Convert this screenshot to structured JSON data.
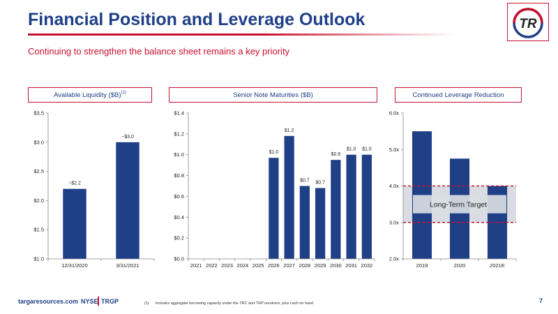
{
  "header": {
    "title": "Financial Position and Leverage Outlook",
    "subtitle": "Continuing to strengthen the balance sheet remains a key priority"
  },
  "logo": {
    "text": "TR",
    "icon": "targa-logo-icon"
  },
  "panels": {
    "liquidity": {
      "label": "Available Liquidity ($B)",
      "footnote_ref": "(1)"
    },
    "maturities": {
      "label": "Senior Note Maturities ($B)"
    },
    "leverage": {
      "label": "Continued Leverage Reduction"
    }
  },
  "chart_data": [
    {
      "id": "liquidity",
      "type": "bar",
      "categories": [
        "12/31/2020",
        "3/31/2021"
      ],
      "values": [
        2.2,
        3.0
      ],
      "data_labels": [
        "~$2.2",
        "~$3.0"
      ],
      "ylim": [
        1.0,
        3.5
      ],
      "yticks": [
        1.0,
        1.5,
        2.0,
        2.5,
        3.0,
        3.5
      ],
      "ytick_labels": [
        "$1.0",
        "$1.5",
        "$2.0",
        "$2.5",
        "$3.0",
        "$3.5"
      ],
      "grid": false,
      "color": "#1f3f86"
    },
    {
      "id": "maturities",
      "type": "bar",
      "categories": [
        "2021",
        "2022",
        "2023",
        "2024",
        "2025",
        "2026",
        "2027",
        "2028",
        "2029",
        "2030",
        "2031",
        "2032"
      ],
      "values": [
        0,
        0,
        0,
        0,
        0,
        0.97,
        1.18,
        0.7,
        0.68,
        0.95,
        1.0,
        1.0
      ],
      "data_labels": [
        "",
        "",
        "",
        "",
        "",
        "$1.0",
        "$1.2",
        "$0.7",
        "$0.7",
        "$0.9",
        "$1.0",
        "$1.0"
      ],
      "ylim": [
        0,
        1.4
      ],
      "yticks": [
        0,
        0.2,
        0.4,
        0.6,
        0.8,
        1.0,
        1.2,
        1.4
      ],
      "ytick_labels": [
        "$0.0",
        "$0.2",
        "$0.4",
        "$0.6",
        "$0.8",
        "$1.0",
        "$1.2",
        "$1.4"
      ],
      "grid": false,
      "color": "#1f3f86"
    },
    {
      "id": "leverage",
      "type": "bar",
      "categories": [
        "2019",
        "2020",
        "2021E"
      ],
      "values": [
        5.5,
        4.75,
        4.0
      ],
      "data_labels": [
        "",
        "",
        ""
      ],
      "ylim": [
        2.0,
        6.0
      ],
      "yticks": [
        2.0,
        3.0,
        4.0,
        5.0,
        6.0
      ],
      "ytick_labels": [
        "2.0x",
        "3.0x",
        "4.0x",
        "5.0x",
        "6.0x"
      ],
      "target_band": [
        3.0,
        4.0
      ],
      "target_label": "Long-Term Target",
      "grid": false,
      "color": "#1f3f86",
      "band_color": "#d9dde3",
      "band_line_color": "#c8102e"
    }
  ],
  "footer": {
    "site": "targaresources.com",
    "exchange": "NYSE",
    "ticker": "TRGP",
    "footnote_mark": "(1)",
    "footnote_text": "Includes aggregate borrowing capacity under the TRC and TRP revolvers, plus cash on hand",
    "page_number": "7"
  }
}
